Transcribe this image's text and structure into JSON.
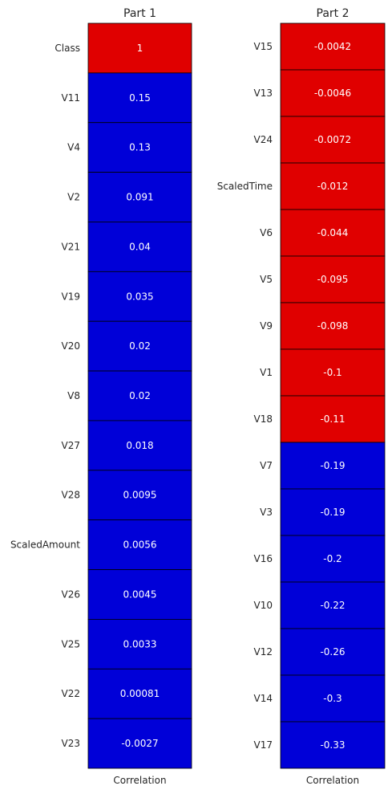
{
  "colors": {
    "high": "#e00000",
    "low": "#0000d8",
    "border": "#000000",
    "value_text": "#ffffff"
  },
  "chart_data": [
    {
      "type": "heatmap",
      "title": "Part 1",
      "xlabel": "Correlation",
      "rows": [
        "Class",
        "V11",
        "V4",
        "V2",
        "V21",
        "V19",
        "V20",
        "V8",
        "V27",
        "V28",
        "ScaledAmount",
        "V26",
        "V25",
        "V22",
        "V23"
      ],
      "labels": [
        "1",
        "0.15",
        "0.13",
        "0.091",
        "0.04",
        "0.035",
        "0.02",
        "0.02",
        "0.018",
        "0.0095",
        "0.0056",
        "0.0045",
        "0.0033",
        "0.00081",
        "-0.0027"
      ],
      "values": [
        1,
        0.15,
        0.13,
        0.091,
        0.04,
        0.035,
        0.02,
        0.02,
        0.018,
        0.0095,
        0.0056,
        0.0045,
        0.0033,
        0.00081,
        -0.0027
      ],
      "color_class": [
        "high",
        "low",
        "low",
        "low",
        "low",
        "low",
        "low",
        "low",
        "low",
        "low",
        "low",
        "low",
        "low",
        "low",
        "low"
      ]
    },
    {
      "type": "heatmap",
      "title": "Part 2",
      "xlabel": "Correlation",
      "rows": [
        "V15",
        "V13",
        "V24",
        "ScaledTime",
        "V6",
        "V5",
        "V9",
        "V1",
        "V18",
        "V7",
        "V3",
        "V16",
        "V10",
        "V12",
        "V14",
        "V17"
      ],
      "labels": [
        "-0.0042",
        "-0.0046",
        "-0.0072",
        "-0.012",
        "-0.044",
        "-0.095",
        "-0.098",
        "-0.1",
        "-0.11",
        "-0.19",
        "-0.19",
        "-0.2",
        "-0.22",
        "-0.26",
        "-0.3",
        "-0.33"
      ],
      "values": [
        -0.0042,
        -0.0046,
        -0.0072,
        -0.012,
        -0.044,
        -0.095,
        -0.098,
        -0.1,
        -0.11,
        -0.19,
        -0.19,
        -0.2,
        -0.22,
        -0.26,
        -0.3,
        -0.33
      ],
      "color_class": [
        "high",
        "high",
        "high",
        "high",
        "high",
        "high",
        "high",
        "high",
        "high",
        "low",
        "low",
        "low",
        "low",
        "low",
        "low",
        "low"
      ]
    }
  ]
}
